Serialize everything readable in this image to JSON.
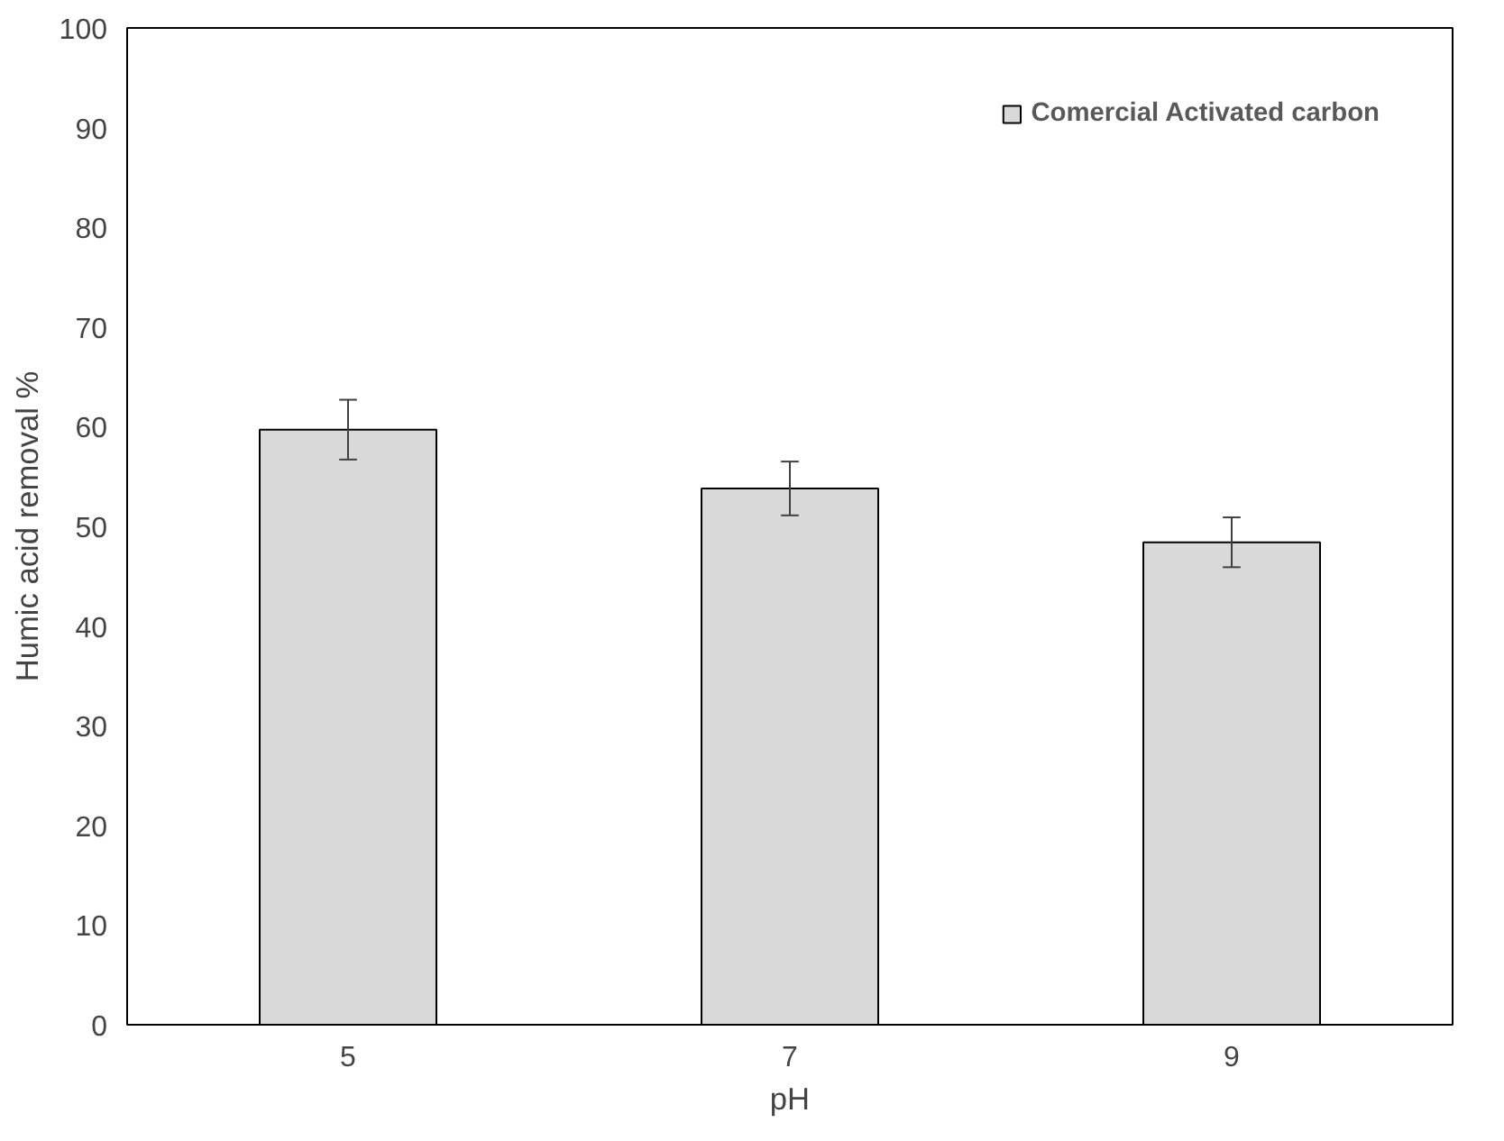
{
  "chart_data": {
    "type": "bar",
    "xlabel": "pH",
    "ylabel": "Humic acid removal %",
    "categories": [
      "5",
      "7",
      "9"
    ],
    "series": [
      {
        "name": "Comercial Activated carbon",
        "color": "#d9d9d9",
        "values": [
          59.7,
          53.8,
          48.4
        ],
        "errors": [
          3.0,
          2.7,
          2.5
        ]
      }
    ],
    "ylim": [
      0,
      100
    ],
    "yticks": [
      0,
      10,
      20,
      30,
      40,
      50,
      60,
      70,
      80,
      90,
      100
    ],
    "grid": false,
    "legend": "top right"
  }
}
